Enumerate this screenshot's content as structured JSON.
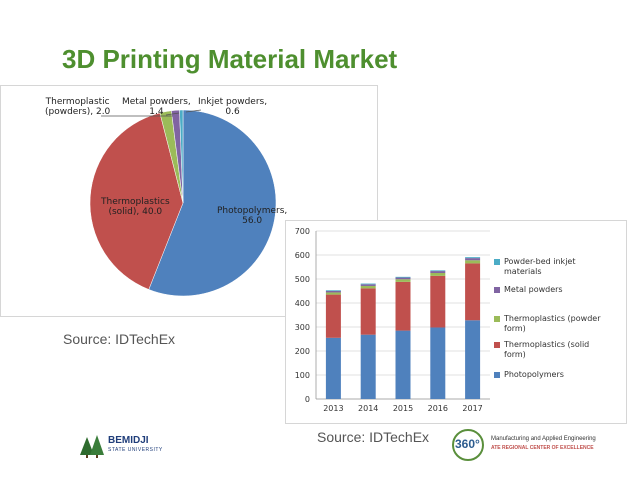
{
  "slide": {
    "title": "3D Printing Material Market",
    "source_left": "Source: IDTechEx",
    "source_right": "Source: IDTechEx"
  },
  "logos": {
    "left": {
      "name": "BEMIDJI",
      "sub": "STATE UNIVERSITY"
    },
    "right": {
      "mark": "360°",
      "line1": "Manufacturing and Applied Engineering",
      "line2": "ATE REGIONAL CENTER OF EXCELLENCE"
    }
  },
  "colors": {
    "title": "#4e8f2f",
    "photopolymers": "#4f81bd",
    "thermoplastics_solid": "#c0504d",
    "thermoplastics_powder": "#9bbb59",
    "metal_powders": "#8064a2",
    "inkjet": "#4bacc6"
  },
  "chart_data": [
    {
      "type": "pie",
      "slices": [
        {
          "label_lines": [
            "Photopolymers,",
            "56.0"
          ],
          "value": 56.0
        },
        {
          "label_lines": [
            "Thermoplastics",
            "(solid), 40.0"
          ],
          "value": 40.0
        },
        {
          "label_lines": [
            "Thermoplastic",
            "(powders), 2.0"
          ],
          "value": 2.0
        },
        {
          "label_lines": [
            "Metal powders,",
            "1.4"
          ],
          "value": 1.4
        },
        {
          "label_lines": [
            "Inkjet powders,",
            "0.6"
          ],
          "value": 0.6
        }
      ]
    },
    {
      "type": "bar",
      "stacked": true,
      "categories": [
        "2013",
        "2014",
        "2015",
        "2016",
        "2017"
      ],
      "ylim": [
        0,
        700
      ],
      "yticks": [
        "0",
        "100",
        "200",
        "300",
        "400",
        "500",
        "600",
        "700"
      ],
      "grid": true,
      "legend_position": "right",
      "series": [
        {
          "name": "Photopolymers",
          "values": [
            255,
            268,
            285,
            298,
            328
          ]
        },
        {
          "name": "Thermoplastics (solid form)",
          "values": [
            180,
            193,
            203,
            215,
            237
          ]
        },
        {
          "name": "Thermoplastics (powder form)",
          "values": [
            9,
            10,
            11,
            12,
            13
          ]
        },
        {
          "name": "Metal powders",
          "values": [
            6,
            7,
            7,
            8,
            9
          ]
        },
        {
          "name": "Powder-bed inkjet materials",
          "values": [
            3,
            3,
            3,
            3,
            4
          ]
        }
      ],
      "legend": [
        {
          "lines": [
            "Powder-bed inkjet",
            "materials"
          ]
        },
        {
          "lines": [
            "Metal powders"
          ]
        },
        {
          "lines": [
            "Thermoplastics (powder",
            "form)"
          ]
        },
        {
          "lines": [
            "Thermoplastics (solid",
            "form)"
          ]
        },
        {
          "lines": [
            "Photopolymers"
          ]
        }
      ]
    }
  ]
}
